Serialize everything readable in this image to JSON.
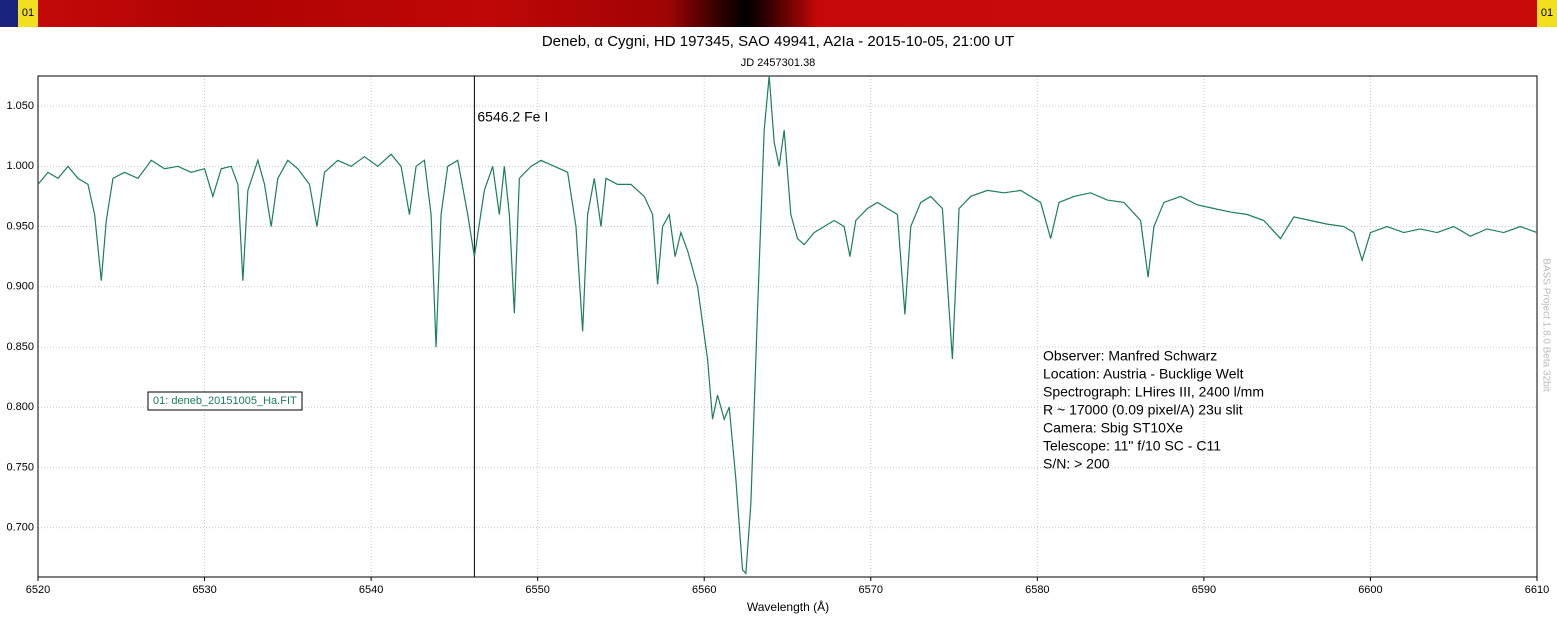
{
  "chart_data": {
    "type": "line",
    "title": "Deneb, α Cygni, HD 197345, SAO 49941, A2Ia - 2015-10-05, 21:00 UT",
    "subtitle": "JD 2457301.38",
    "x_label": "Wavelength (Å)",
    "strip_labels": [
      "01",
      "01"
    ],
    "watermark": "BASS Project 1.8.0 Beta 32bit",
    "grid": true,
    "xlim": [
      6520,
      6610
    ],
    "ylim": [
      0.659,
      1.075
    ],
    "xticks": [
      6520,
      6530,
      6540,
      6550,
      6560,
      6570,
      6580,
      6590,
      6600,
      6610
    ],
    "yticks": [
      {
        "value": 0.7,
        "label": "0.700"
      },
      {
        "value": 0.75,
        "label": "0.750"
      },
      {
        "value": 0.8,
        "label": "0.800"
      },
      {
        "value": 0.85,
        "label": "0.850"
      },
      {
        "value": 0.9,
        "label": "0.900"
      },
      {
        "value": 0.95,
        "label": "0.950"
      },
      {
        "value": 1.0,
        "label": "1.000"
      },
      {
        "value": 1.05,
        "label": "1.050"
      }
    ],
    "annotations": [
      {
        "x": 6546.2,
        "text": "6546.2 Fe I"
      }
    ],
    "notes": [
      "Observer: Manfred Schwarz",
      "Location: Austria - Bucklige Welt",
      "Spectrograph: LHires III, 2400 l/mm",
      "R ~ 17000 (0.09 pixel/A) 23u slit",
      "Camera: Sbig ST10Xe",
      "Telescope: 11\" f/10 SC - C11",
      "S/N: > 200"
    ],
    "x": [
      6520.0,
      6520.6,
      6521.2,
      6521.8,
      6522.4,
      6523.0,
      6523.4,
      6523.8,
      6524.1,
      6524.5,
      6525.2,
      6526.0,
      6526.8,
      6527.6,
      6528.4,
      6529.2,
      6530.0,
      6530.5,
      6531.0,
      6531.6,
      6532.0,
      6532.3,
      6532.6,
      6533.2,
      6533.6,
      6534.0,
      6534.4,
      6535.0,
      6535.6,
      6536.3,
      6536.75,
      6537.2,
      6538.0,
      6538.8,
      6539.6,
      6540.4,
      6541.2,
      6541.8,
      6542.3,
      6542.7,
      6543.2,
      6543.6,
      6543.9,
      6544.2,
      6544.6,
      6545.2,
      6545.8,
      6546.2,
      6546.8,
      6547.3,
      6547.7,
      6548.0,
      6548.3,
      6548.6,
      6548.9,
      6549.6,
      6550.2,
      6551.0,
      6551.8,
      6552.3,
      6552.7,
      6553.0,
      6553.4,
      6553.8,
      6554.1,
      6554.8,
      6555.6,
      6556.4,
      6556.9,
      6557.2,
      6557.5,
      6557.9,
      6558.25,
      6558.6,
      6559.0,
      6559.6,
      6560.2,
      6560.5,
      6560.8,
      6561.2,
      6561.5,
      6561.9,
      6562.3,
      6562.5,
      6562.8,
      6563.2,
      6563.6,
      6563.9,
      6564.2,
      6564.5,
      6564.8,
      6565.2,
      6565.6,
      6566.0,
      6566.6,
      6567.2,
      6567.8,
      6568.4,
      6568.75,
      6569.1,
      6569.8,
      6570.4,
      6571.0,
      6571.6,
      6572.05,
      6572.4,
      6573.0,
      6573.6,
      6574.3,
      6574.9,
      6575.3,
      6576.0,
      6577.0,
      6578.0,
      6579.0,
      6580.2,
      6580.8,
      6581.3,
      6582.2,
      6583.2,
      6584.2,
      6585.2,
      6586.2,
      6586.65,
      6587.0,
      6587.6,
      6588.6,
      6589.6,
      6590.6,
      6591.6,
      6592.6,
      6593.6,
      6594.6,
      6595.4,
      6596.4,
      6597.4,
      6598.4,
      6599.0,
      6599.5,
      6600.0,
      6601.0,
      6602.0,
      6603.0,
      6604.0,
      6605.0,
      6606.0,
      6607.0,
      6608.0,
      6609.0,
      6610.0
    ],
    "series": [
      {
        "name": "01: deneb_20151005_Ha.FIT",
        "color": "#1b7f57",
        "values": [
          0.985,
          0.995,
          0.99,
          1.0,
          0.99,
          0.985,
          0.96,
          0.905,
          0.955,
          0.99,
          0.995,
          0.99,
          1.005,
          0.998,
          1.0,
          0.995,
          0.998,
          0.975,
          0.998,
          1.0,
          0.985,
          0.905,
          0.98,
          1.005,
          0.985,
          0.95,
          0.99,
          1.005,
          0.998,
          0.985,
          0.95,
          0.995,
          1.005,
          1.0,
          1.008,
          1.0,
          1.01,
          1.0,
          0.96,
          1.0,
          1.005,
          0.96,
          0.85,
          0.96,
          1.0,
          1.005,
          0.96,
          0.925,
          0.98,
          1.0,
          0.96,
          1.0,
          0.96,
          0.878,
          0.99,
          1.0,
          1.005,
          1.0,
          0.995,
          0.95,
          0.863,
          0.96,
          0.99,
          0.95,
          0.99,
          0.985,
          0.985,
          0.975,
          0.96,
          0.902,
          0.95,
          0.96,
          0.925,
          0.945,
          0.93,
          0.9,
          0.84,
          0.79,
          0.81,
          0.79,
          0.8,
          0.74,
          0.665,
          0.662,
          0.72,
          0.88,
          1.03,
          1.075,
          1.02,
          1.0,
          1.03,
          0.96,
          0.94,
          0.935,
          0.945,
          0.95,
          0.955,
          0.95,
          0.925,
          0.955,
          0.965,
          0.97,
          0.965,
          0.96,
          0.877,
          0.95,
          0.97,
          0.975,
          0.965,
          0.84,
          0.965,
          0.975,
          0.98,
          0.978,
          0.98,
          0.97,
          0.94,
          0.97,
          0.975,
          0.978,
          0.972,
          0.97,
          0.955,
          0.908,
          0.95,
          0.97,
          0.975,
          0.968,
          0.965,
          0.962,
          0.96,
          0.955,
          0.94,
          0.958,
          0.955,
          0.952,
          0.95,
          0.945,
          0.922,
          0.945,
          0.95,
          0.945,
          0.948,
          0.945,
          0.95,
          0.942,
          0.948,
          0.945,
          0.95,
          0.945
        ]
      }
    ]
  }
}
